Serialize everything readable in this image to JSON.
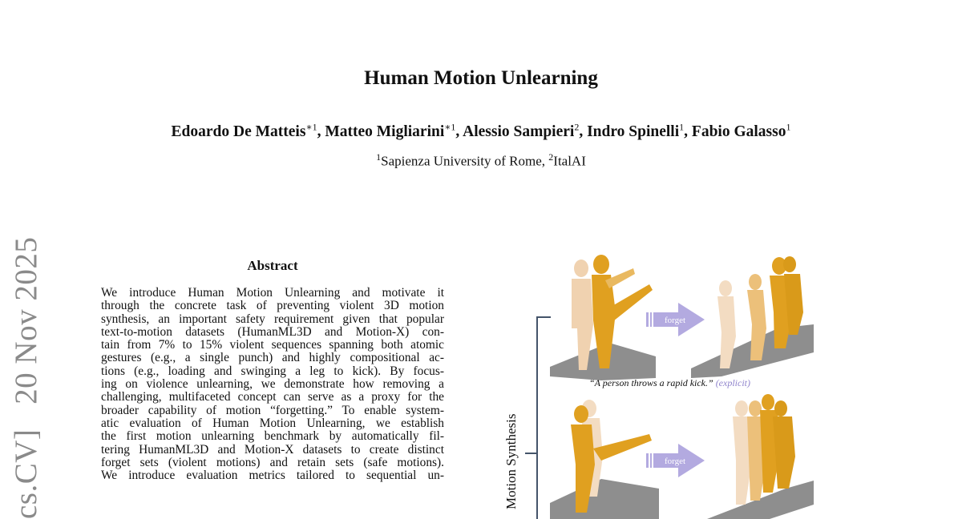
{
  "paper": {
    "title": "Human Motion Unlearning",
    "authors": [
      {
        "name": "Edoardo De Matteis",
        "mark": "∗1"
      },
      {
        "name": "Matteo Migliarini",
        "mark": "∗1"
      },
      {
        "name": "Alessio Sampieri",
        "mark": "2"
      },
      {
        "name": "Indro Spinelli",
        "mark": "1"
      },
      {
        "name": "Fabio Galasso",
        "mark": "1"
      }
    ],
    "affiliations": [
      {
        "mark": "1",
        "name": "Sapienza University of Rome, "
      },
      {
        "mark": "2",
        "name": "ItalAI"
      }
    ],
    "arxiv_stamp": "cs.CV]   20 Nov 2025"
  },
  "abstract": {
    "heading": "Abstract",
    "lines": [
      "We introduce Human Motion Unlearning and motivate it",
      "through the concrete task of preventing violent 3D motion",
      "synthesis, an important safety requirement given that popular",
      "text-to-motion datasets (HumanML3D and Motion-X) con-",
      "tain from 7% to 15% violent sequences spanning both atomic",
      "gestures (e.g., a single punch) and highly compositional ac-",
      "tions (e.g., loading and swinging a leg to kick). By focus-",
      "ing on violence unlearning, we demonstrate how removing a",
      "challenging, multifaceted concept can serve as a proxy for the",
      "broader capability of motion “forgetting.” To enable system-",
      "atic evaluation of Human Motion Unlearning, we establish",
      "the first motion unlearning benchmark by automatically fil-",
      "tering HumanML3D and Motion-X datasets to create distinct",
      "forget sets (violent motions) and retain sets (safe motions).",
      "We introduce evaluation metrics tailored to sequential un-"
    ]
  },
  "figure": {
    "side_label": "Motion Synthesis",
    "arrow_label": "forget",
    "caption_quote": "“A person throws a rapid kick.”",
    "caption_tag": "(explicit)",
    "colors": {
      "arrow": "#b3aae0",
      "body_light": "#f0d2b0",
      "body_dark": "#e0a020",
      "floor": "#8e8e8e",
      "bracket": "#44546a"
    }
  }
}
